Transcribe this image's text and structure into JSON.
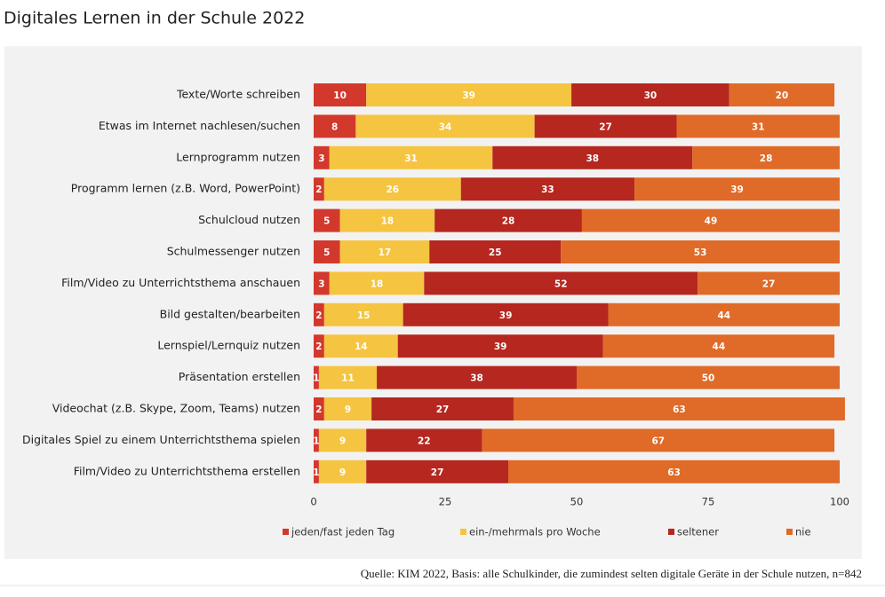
{
  "chart_data": {
    "type": "stacked_bar_horizontal",
    "title": "Digitales Lernen in der Schule 2022",
    "source": "Quelle: KIM 2022, Basis: alle Schulkinder, die zumindest selten digitale Geräte in der Schule nutzen, n=842",
    "categories": [
      "Texte/Worte schreiben",
      "Etwas im Internet nachlesen/suchen",
      "Lernprogramm nutzen",
      "Programm lernen (z.B. Word, PowerPoint)",
      "Schulcloud nutzen",
      "Schulmessenger nutzen",
      "Film/Video zu Unterrichtsthema anschauen",
      "Bild gestalten/bearbeiten",
      "Lernspiel/Lernquiz nutzen",
      "Präsentation erstellen",
      "Videochat (z.B. Skype, Zoom, Teams) nutzen",
      "Digitales Spiel zu einem Unterrichtsthema spielen",
      "Film/Video zu Unterrichtsthema erstellen"
    ],
    "series": [
      {
        "name": "jeden/fast jeden Tag",
        "color": "#d2382c",
        "values": [
          10,
          8,
          3,
          2,
          5,
          5,
          3,
          2,
          2,
          1,
          2,
          1,
          1
        ]
      },
      {
        "name": "ein-/mehrmals pro Woche",
        "color": "#f5c440",
        "values": [
          39,
          34,
          31,
          26,
          18,
          17,
          18,
          15,
          14,
          11,
          9,
          9,
          9
        ]
      },
      {
        "name": "seltener",
        "color": "#b5271f",
        "values": [
          30,
          27,
          38,
          33,
          28,
          25,
          52,
          39,
          39,
          38,
          27,
          22,
          27
        ]
      },
      {
        "name": "nie",
        "color": "#e06a27",
        "values": [
          20,
          31,
          28,
          39,
          49,
          53,
          27,
          44,
          44,
          50,
          63,
          67,
          63
        ]
      }
    ],
    "xlim": [
      0,
      100
    ],
    "xticks": [
      0,
      25,
      50,
      75,
      100
    ]
  }
}
